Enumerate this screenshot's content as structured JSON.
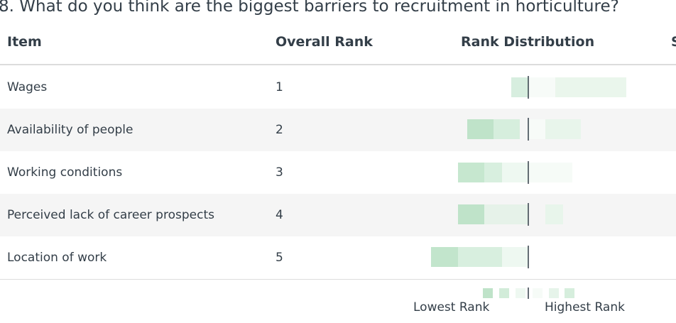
{
  "title": "8. What do you think are the biggest barriers to recruitment in horticulture?",
  "table": {
    "columns": [
      "Item",
      "Overall Rank",
      "Rank Distribution",
      "S"
    ],
    "rows": [
      [
        "Wages",
        1
      ],
      [
        "Availability of people",
        2
      ],
      [
        "Working conditions",
        3
      ],
      [
        "Perceived lack of career prospects",
        4
      ],
      [
        "Location of work",
        5
      ]
    ]
  },
  "legend": {
    "low": "Lowest Rank",
    "high": "Highest Rank"
  }
}
